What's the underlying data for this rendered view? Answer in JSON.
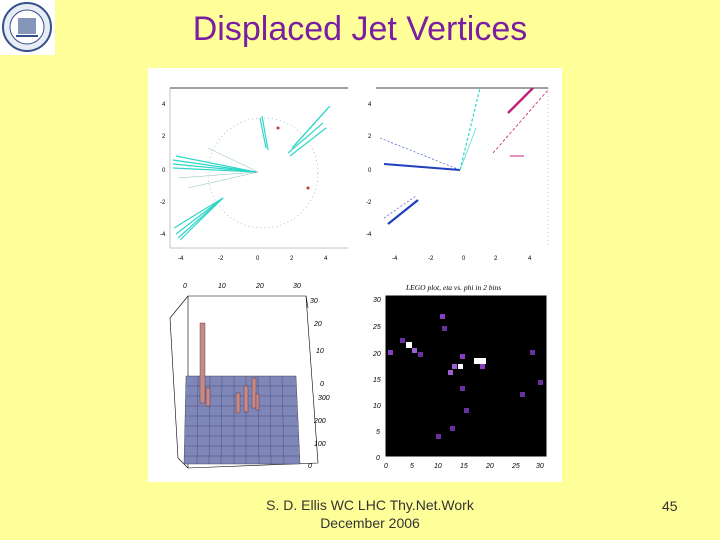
{
  "slide": {
    "title": "Displaced Jet Vertices",
    "footer_line1": "S. D. Ellis   WC LHC Thy.Net.Work",
    "footer_line2": "December 2006",
    "page_number": "45"
  },
  "colors": {
    "title": "#7a1fa2",
    "background": "#ffff99",
    "cyan": "#2fd6c8",
    "blue": "#1f3fbf",
    "magenta": "#c0207a"
  },
  "lego_plot_caption": "LEGO plot, eta vs. phi in 2 bins",
  "panel_tl": {
    "x_ticks": [
      "-4",
      "-2",
      "0",
      "2",
      "4"
    ],
    "y_ticks": [
      "4",
      "2",
      "0",
      "-2",
      "-4"
    ]
  },
  "panel_tr": {
    "x_ticks": [
      "-4",
      "-2",
      "0",
      "2",
      "4"
    ],
    "y_ticks": [
      "4",
      "2",
      "0",
      "-2",
      "-4"
    ]
  },
  "panel_bl": {
    "top_ticks": [
      "0",
      "10",
      "20",
      "30"
    ],
    "right_ticks_upper": [
      "30",
      "20",
      "10",
      "0"
    ],
    "right_ticks_lower": [
      "300",
      "200",
      "100",
      "0"
    ]
  },
  "panel_br": {
    "x_ticks": [
      "0",
      "5",
      "10",
      "15",
      "20",
      "25",
      "30"
    ],
    "y_ticks": [
      "30",
      "25",
      "20",
      "15",
      "10",
      "5",
      "0"
    ]
  },
  "icons": {
    "seal": "university-seal-icon"
  }
}
